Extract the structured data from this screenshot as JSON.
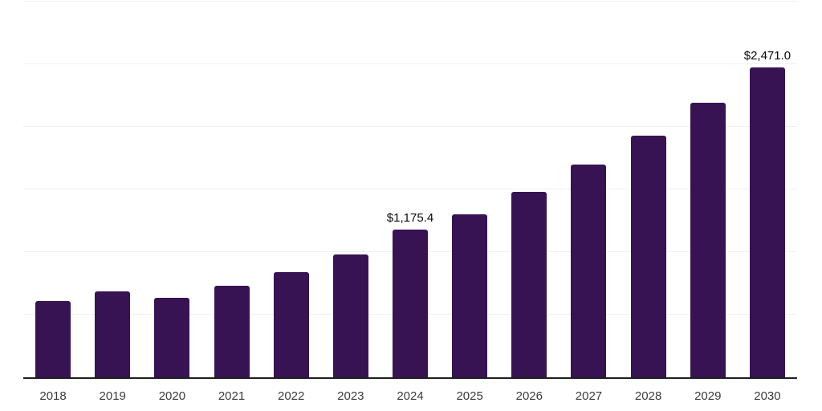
{
  "chart_data": {
    "type": "bar",
    "title": "",
    "xlabel": "",
    "ylabel": "",
    "categories": [
      "2018",
      "2019",
      "2020",
      "2021",
      "2022",
      "2023",
      "2024",
      "2025",
      "2026",
      "2027",
      "2028",
      "2029",
      "2030"
    ],
    "values": [
      608,
      686,
      635,
      731,
      836,
      981,
      1175.4,
      1300,
      1476,
      1695,
      1925,
      2186,
      2471
    ],
    "data_labels": [
      "",
      "",
      "",
      "",
      "",
      "",
      "$1,175.4",
      "",
      "",
      "",
      "",
      "",
      "$2,471.0"
    ],
    "ylim": [
      0,
      3000
    ],
    "grid_step": 500,
    "grid": "on",
    "legend": "none",
    "colors": {
      "bar": "#371353",
      "gridline": "#f1f1f1",
      "axis": "#1f1f1f",
      "tick_label": "#3b3b3b",
      "value_label": "#0a0a0a",
      "background": "#ffffff"
    }
  }
}
